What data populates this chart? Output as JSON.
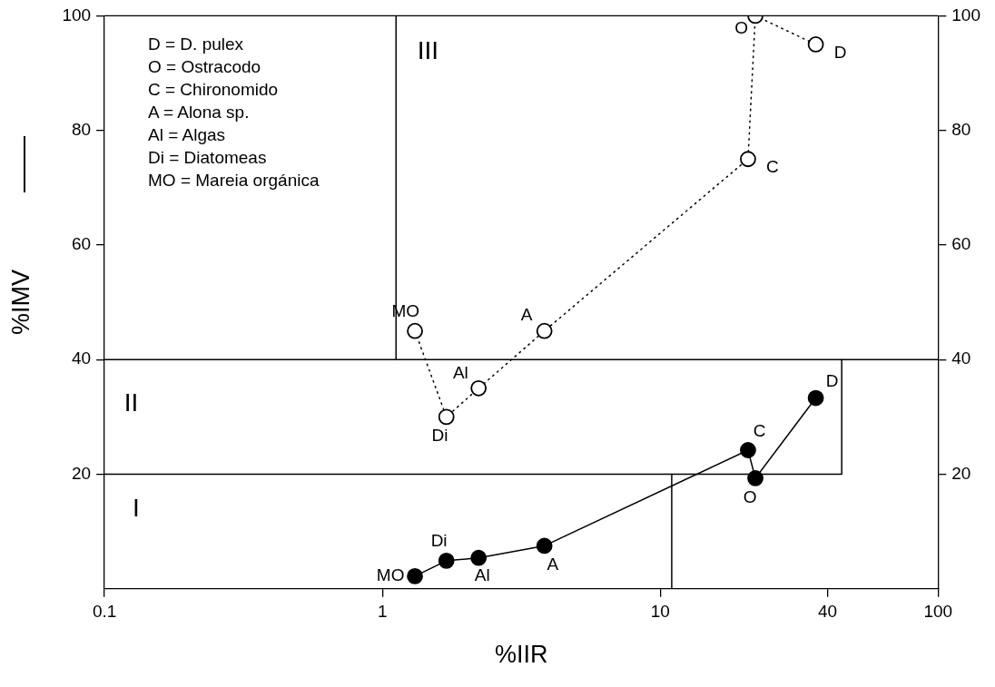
{
  "chart_data": {
    "type": "scatter",
    "xlabel": "%IIR",
    "ylabel": "%IMV",
    "log": "x",
    "xlim": [
      0.1,
      100
    ],
    "xticks": [
      0.1,
      1,
      10,
      40,
      100
    ],
    "ylim": [
      0,
      100
    ],
    "yticks": [
      20,
      40,
      60,
      80,
      100
    ],
    "y2lim": [
      0,
      100
    ],
    "y2ticks": [
      20,
      40,
      60,
      80,
      100
    ],
    "grid": false,
    "legend": false,
    "marker": "circle",
    "series": [
      {
        "type": "line",
        "color": "#ffffff",
        "line_style": "dotted",
        "x": [
          1.31,
          1.7,
          2.22,
          3.83,
          20.7,
          22,
          36.3
        ],
        "values": [
          45,
          30,
          35,
          45,
          75,
          100,
          95
        ],
        "value_labels": [
          "MO",
          "Di",
          "Al",
          "A",
          "C",
          "O",
          "D"
        ]
      },
      {
        "type": "line",
        "color": "#000000",
        "line_style": "solid",
        "x": [
          1.31,
          1.7,
          2.22,
          3.83,
          20.7,
          22,
          36.3
        ],
        "values": [
          2.2,
          4.9,
          5.4,
          7.5,
          24.2,
          19.3,
          33.3
        ],
        "value_labels": [
          "MO",
          "Di",
          "Al",
          "A",
          "C",
          "O",
          "D"
        ]
      },
      {
        "type": "line",
        "color": "#000000",
        "line_style": "solid",
        "marker": "none",
        "x": [
          1.12,
          1.12
        ],
        "values": [
          40,
          100
        ]
      },
      {
        "type": "line",
        "color": "#000000",
        "line_style": "solid",
        "marker": "none",
        "x": [
          0.1,
          100
        ],
        "values": [
          40,
          40
        ]
      },
      {
        "type": "line",
        "color": "#000000",
        "line_style": "solid",
        "marker": "none",
        "x": [
          0.1,
          45,
          45
        ],
        "values": [
          20,
          20,
          40
        ]
      },
      {
        "type": "line",
        "color": "#000000",
        "line_style": "solid",
        "marker": "none",
        "x": [
          11,
          11
        ],
        "values": [
          0,
          20
        ]
      }
    ],
    "annotations": [
      "D = D. pulex",
      "O = Ostracodo",
      "C = Chironomido",
      "A = Alona sp.",
      "Al = Algas",
      "Di = Diatomeas",
      "MO = Mareia orgánica",
      "III",
      "II",
      "I"
    ]
  }
}
